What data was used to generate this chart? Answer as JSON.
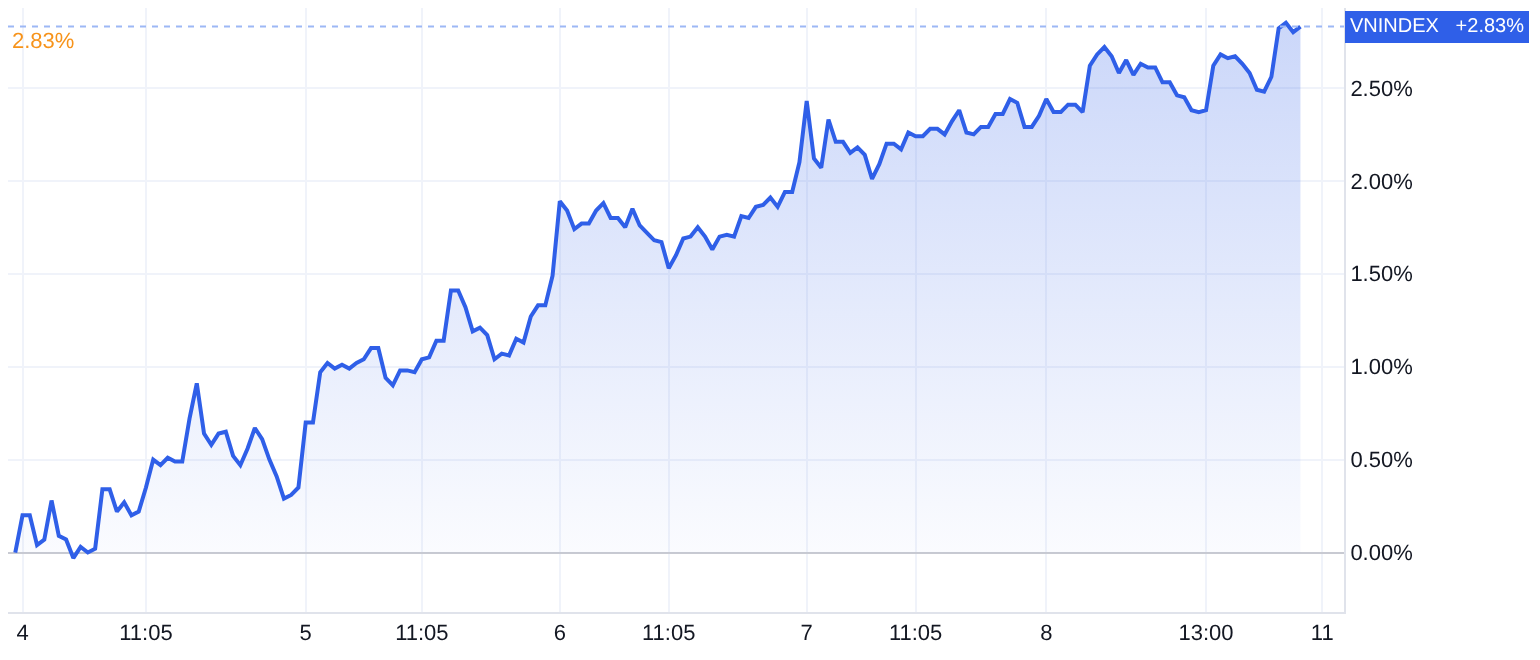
{
  "chart_data": {
    "type": "area",
    "categories": [
      null,
      "4",
      null,
      null,
      null,
      null,
      null,
      null,
      null,
      null,
      null,
      null,
      null,
      null,
      null,
      null,
      null,
      null,
      "11:05",
      null,
      null,
      null,
      null,
      null,
      null,
      null,
      null,
      null,
      null,
      null,
      null,
      null,
      null,
      null,
      null,
      null,
      null,
      null,
      null,
      null,
      "5",
      null,
      null,
      null,
      null,
      null,
      null,
      null,
      null,
      null,
      null,
      null,
      null,
      null,
      null,
      null,
      "11:05",
      null,
      null,
      null,
      null,
      null,
      null,
      null,
      null,
      null,
      null,
      null,
      null,
      null,
      null,
      null,
      null,
      null,
      null,
      "6",
      null,
      null,
      null,
      null,
      null,
      null,
      null,
      null,
      null,
      null,
      null,
      null,
      null,
      null,
      "11:05",
      null,
      null,
      null,
      null,
      null,
      null,
      null,
      null,
      null,
      null,
      null,
      null,
      null,
      null,
      null,
      null,
      null,
      null,
      "7",
      null,
      null,
      null,
      null,
      null,
      null,
      null,
      null,
      null,
      null,
      null,
      null,
      null,
      null,
      "11:05",
      null,
      null,
      null,
      null,
      null,
      null,
      null,
      null,
      null,
      null,
      null,
      null,
      null,
      null,
      null,
      null,
      null,
      "8",
      null,
      null,
      null,
      null,
      null,
      null,
      null,
      null,
      null,
      null,
      null,
      null,
      null,
      null,
      null,
      null,
      null,
      null,
      null,
      null,
      null,
      "13:00",
      null,
      null,
      null,
      null,
      null,
      null,
      null,
      null,
      null,
      null,
      null,
      null,
      null,
      null,
      null,
      "11"
    ],
    "series": [
      {
        "name": "VNINDEX",
        "color": "#2f5fe8",
        "values": [
          0.0,
          0.2,
          0.2,
          0.04,
          0.07,
          0.28,
          0.09,
          0.07,
          -0.03,
          0.03,
          0.0,
          0.02,
          0.34,
          0.34,
          0.22,
          0.27,
          0.2,
          0.22,
          0.35,
          0.5,
          0.47,
          0.51,
          0.49,
          0.49,
          0.72,
          0.91,
          0.64,
          0.58,
          0.64,
          0.65,
          0.52,
          0.47,
          0.56,
          0.67,
          0.61,
          0.5,
          0.41,
          0.29,
          0.31,
          0.35,
          0.7,
          0.7,
          0.97,
          1.02,
          0.99,
          1.01,
          0.99,
          1.02,
          1.04,
          1.1,
          1.1,
          0.94,
          0.9,
          0.98,
          0.98,
          0.97,
          1.04,
          1.05,
          1.14,
          1.14,
          1.41,
          1.41,
          1.32,
          1.19,
          1.21,
          1.17,
          1.04,
          1.07,
          1.06,
          1.15,
          1.13,
          1.27,
          1.33,
          1.33,
          1.49,
          1.89,
          1.84,
          1.74,
          1.77,
          1.77,
          1.84,
          1.88,
          1.8,
          1.8,
          1.75,
          1.85,
          1.76,
          1.72,
          1.68,
          1.67,
          1.53,
          1.6,
          1.69,
          1.7,
          1.75,
          1.7,
          1.63,
          1.7,
          1.71,
          1.7,
          1.81,
          1.8,
          1.86,
          1.87,
          1.91,
          1.86,
          1.94,
          1.94,
          2.1,
          2.43,
          2.12,
          2.07,
          2.33,
          2.21,
          2.21,
          2.15,
          2.18,
          2.14,
          2.01,
          2.09,
          2.2,
          2.2,
          2.17,
          2.26,
          2.24,
          2.24,
          2.28,
          2.28,
          2.25,
          2.32,
          2.38,
          2.26,
          2.25,
          2.29,
          2.29,
          2.36,
          2.36,
          2.44,
          2.42,
          2.29,
          2.29,
          2.35,
          2.44,
          2.37,
          2.37,
          2.41,
          2.41,
          2.37,
          2.62,
          2.68,
          2.72,
          2.67,
          2.58,
          2.65,
          2.57,
          2.63,
          2.61,
          2.61,
          2.53,
          2.53,
          2.46,
          2.45,
          2.38,
          2.37,
          2.38,
          2.62,
          2.68,
          2.66,
          2.67,
          2.63,
          2.58,
          2.49,
          2.48,
          2.56,
          2.82,
          2.85,
          2.8,
          2.83,
          null,
          null,
          null
        ],
        "value_labels": [
          null,
          null,
          null,
          null,
          null,
          null,
          null,
          null,
          null,
          null,
          null,
          null,
          null,
          null,
          null,
          null,
          null,
          null,
          null,
          null,
          null,
          null,
          null,
          null,
          null,
          null,
          null,
          null,
          null,
          null,
          null,
          null,
          null,
          null,
          null,
          null,
          null,
          null,
          null,
          null,
          null,
          null,
          null,
          null,
          null,
          null,
          null,
          null,
          null,
          null,
          null,
          null,
          null,
          null,
          null,
          null,
          null,
          null,
          null,
          null,
          null,
          null,
          null,
          null,
          null,
          null,
          null,
          null,
          null,
          null,
          null,
          null,
          null,
          null,
          null,
          null,
          null,
          null,
          null,
          null,
          null,
          null,
          null,
          null,
          null,
          null,
          null,
          null,
          null,
          null,
          null,
          null,
          null,
          null,
          null,
          null,
          null,
          null,
          null,
          null,
          null,
          null,
          null,
          null,
          null,
          null,
          null,
          null,
          null,
          null,
          null,
          null,
          null,
          null,
          null,
          null,
          null,
          null,
          null,
          null,
          null,
          null,
          null,
          null,
          null,
          null,
          null,
          null,
          null,
          null,
          null,
          null,
          null,
          null,
          null,
          null,
          null,
          null,
          null,
          null,
          null,
          null,
          null,
          null,
          null,
          null,
          null,
          null,
          null,
          null,
          null,
          null,
          null,
          null,
          null,
          null,
          null,
          null,
          null,
          null,
          null,
          null,
          null,
          null,
          null,
          null,
          null,
          null,
          null,
          null,
          null,
          null,
          null,
          null,
          null,
          null,
          null,
          "+2.83%",
          null,
          null,
          null
        ]
      }
    ],
    "ylim": [
      -0.32,
      2.93
    ],
    "yticks": [
      {
        "value": 0,
        "label": "0.00%"
      },
      {
        "value": 0.5,
        "label": "0.50%"
      },
      {
        "value": 1,
        "label": "1.00%"
      },
      {
        "value": 1.5,
        "label": "1.50%"
      },
      {
        "value": 2,
        "label": "2.00%"
      },
      {
        "value": 2.5,
        "label": "2.50%"
      }
    ],
    "ref_lines": [
      {
        "axis": "y",
        "value": 2.83,
        "label": "2.83%",
        "color": "#9db8f5",
        "line_style": "dotted"
      }
    ],
    "grid": true,
    "legend": false
  }
}
